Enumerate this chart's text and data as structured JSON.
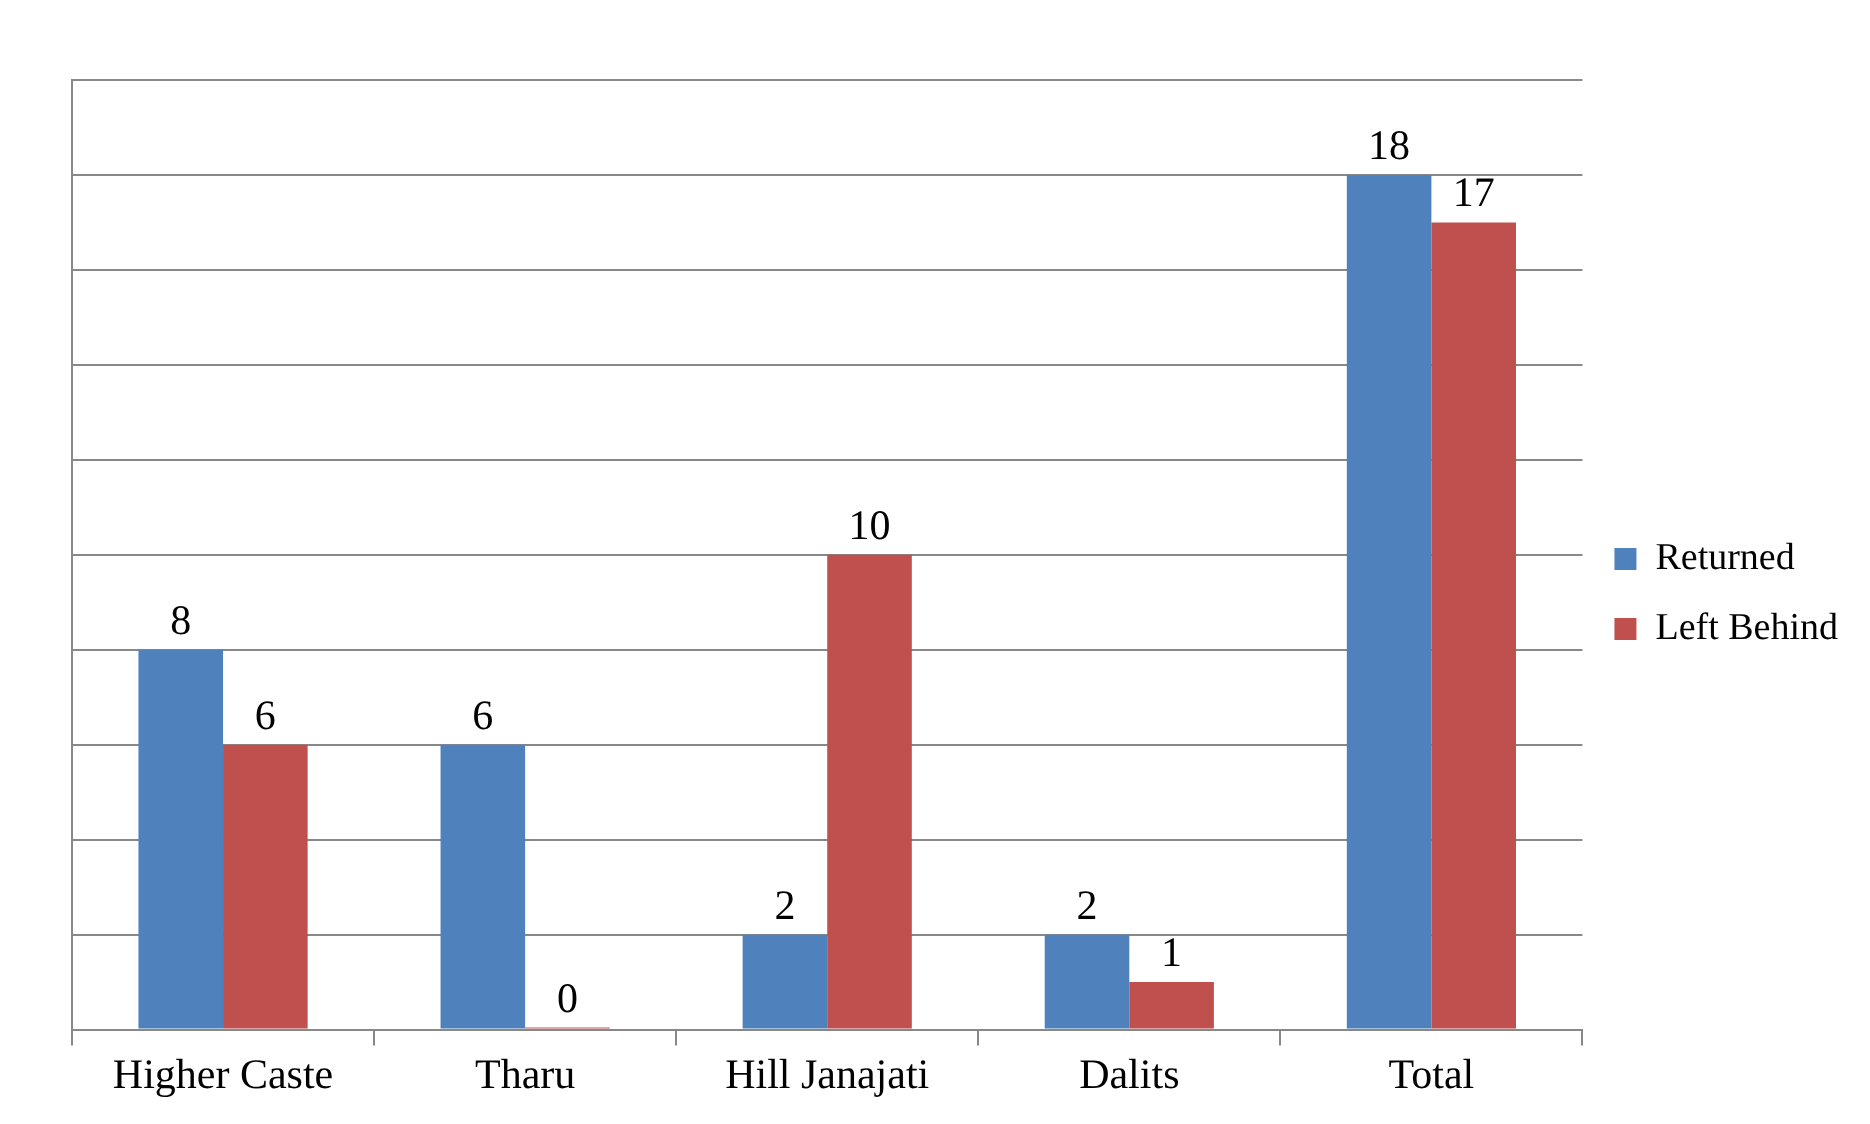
{
  "chart_data": {
    "type": "bar",
    "categories": [
      "Higher Caste",
      "Tharu",
      "Hill Janajati",
      "Dalits",
      "Total"
    ],
    "series": [
      {
        "name": "Returned",
        "color": "#4f81bd",
        "values": [
          8,
          6,
          2,
          2,
          18
        ]
      },
      {
        "name": "Left Behind",
        "color": "#c0504d",
        "values": [
          6,
          0,
          10,
          1,
          17
        ]
      }
    ],
    "ylim": [
      0,
      20
    ],
    "yticks": [
      0,
      2,
      4,
      6,
      8,
      10,
      12,
      14,
      16,
      18,
      20
    ],
    "tick_labels": "x",
    "grid": "y",
    "legend": "right",
    "data_labels": true
  }
}
